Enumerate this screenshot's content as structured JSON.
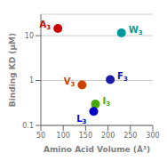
{
  "chart_data": {
    "type": "scatter",
    "xlabel": "Amino Acid Volume (Å³)",
    "ylabel": "Binding KD (μM)",
    "points": [
      {
        "label": "A3",
        "x": 88,
        "y": 14.5,
        "color": "#cc0000"
      },
      {
        "label": "W3",
        "x": 230,
        "y": 11.5,
        "color": "#00999a"
      },
      {
        "label": "V3",
        "x": 142,
        "y": 0.8,
        "color": "#cc4400"
      },
      {
        "label": "F3",
        "x": 205,
        "y": 1.05,
        "color": "#1a1aaa"
      },
      {
        "label": "I3",
        "x": 172,
        "y": 0.3,
        "color": "#44aa00"
      },
      {
        "label": "L3",
        "x": 168,
        "y": 0.205,
        "color": "#0000cc"
      }
    ],
    "xlim": [
      50,
      300
    ],
    "ylim": [
      0.1,
      30
    ],
    "xticks": [
      50,
      100,
      150,
      200,
      250,
      300
    ],
    "yticks": [
      0.1,
      1,
      10
    ],
    "log": "y",
    "grid": true
  }
}
